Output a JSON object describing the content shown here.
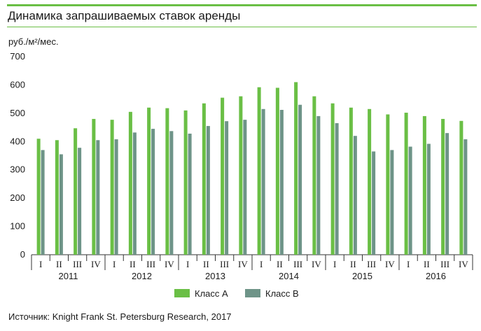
{
  "title": "Динамика запрашиваемых ставок аренды",
  "source": "Источник: Knight Frank St. Petersburg Research, 2017",
  "colors": {
    "accent": "#6abf45",
    "class_a": "#6abf45",
    "class_b": "#6e9488"
  },
  "chart_data": {
    "type": "bar",
    "ylabel": "руб./м²/мес.",
    "ylim": [
      0,
      700
    ],
    "yticks": [
      0,
      100,
      200,
      300,
      400,
      500,
      600,
      700
    ],
    "grid": false,
    "legend_position": "bottom",
    "categories": [
      "I",
      "II",
      "III",
      "IV",
      "I",
      "II",
      "III",
      "IV",
      "I",
      "II",
      "III",
      "IV",
      "I",
      "II",
      "III",
      "IV",
      "I",
      "II",
      "III",
      "IV",
      "I",
      "II",
      "III",
      "IV"
    ],
    "years": [
      "2011",
      "2012",
      "2013",
      "2014",
      "2015",
      "2016"
    ],
    "series": [
      {
        "name": "Класс А",
        "color": "#6abf45",
        "values": [
          410,
          405,
          447,
          480,
          477,
          505,
          520,
          518,
          510,
          535,
          555,
          560,
          592,
          590,
          610,
          560,
          535,
          520,
          515,
          496,
          502,
          490,
          480,
          473
        ]
      },
      {
        "name": "Класс В",
        "color": "#6e9488",
        "values": [
          370,
          355,
          378,
          405,
          408,
          432,
          445,
          437,
          428,
          455,
          472,
          477,
          515,
          512,
          530,
          490,
          465,
          420,
          365,
          370,
          382,
          392,
          430,
          408
        ]
      }
    ]
  }
}
